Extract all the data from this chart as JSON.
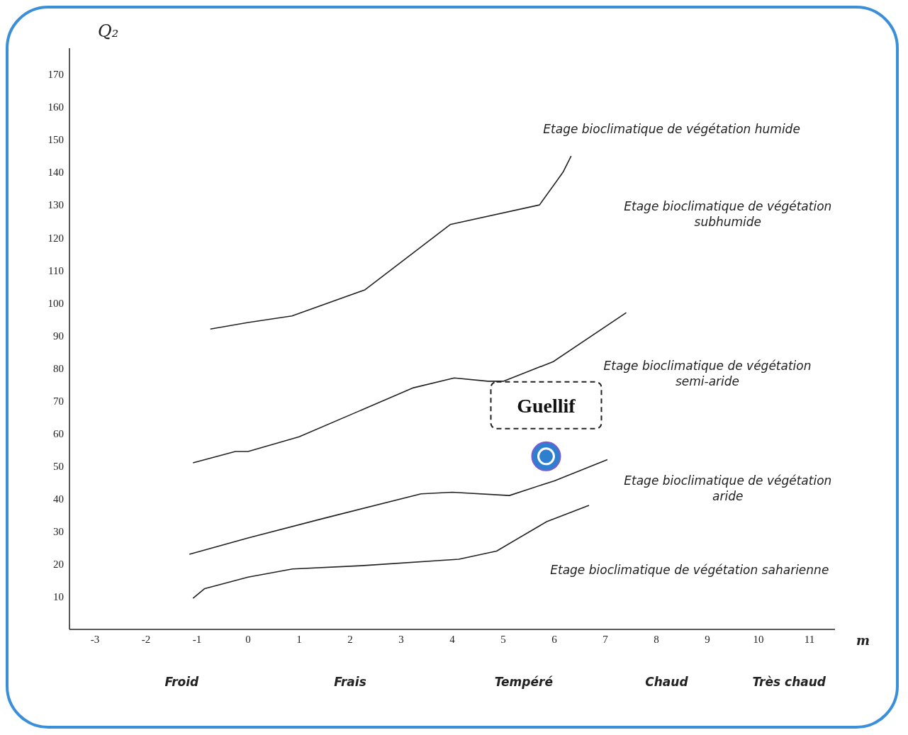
{
  "chart_data": {
    "type": "line",
    "xlabel": "m",
    "ylabel": "Q₂",
    "xlim": [
      -3.5,
      11.5
    ],
    "xticks": [
      -3,
      -2,
      -1,
      0,
      1,
      2,
      3,
      4,
      5,
      6,
      7,
      8,
      9,
      10,
      11
    ],
    "ylim": [
      0,
      178
    ],
    "yticks": [
      10,
      20,
      30,
      40,
      50,
      60,
      70,
      80,
      90,
      100,
      110,
      120,
      130,
      140,
      150,
      160,
      170
    ],
    "grid": false,
    "marker": "none",
    "line_style": "solid",
    "series": [
      {
        "color": "#222222",
        "x": [
          -0.74,
          0,
          0.86,
          2.29,
          3.96,
          5.71,
          6.17,
          6.33
        ],
        "values": [
          92,
          94,
          96,
          104,
          124,
          130,
          140,
          145
        ]
      },
      {
        "color": "#222222",
        "x": [
          -1.08,
          -0.25,
          0,
          1.0,
          3.24,
          4.04,
          4.7,
          5.0,
          5.98,
          7.41
        ],
        "values": [
          51,
          54.5,
          54.5,
          59,
          74,
          77,
          76,
          76,
          82,
          97
        ]
      },
      {
        "color": "#222222",
        "x": [
          -1.15,
          0,
          1.48,
          3.39,
          4.0,
          5.12,
          6.0,
          7.04
        ],
        "values": [
          23,
          28,
          34,
          41.5,
          42,
          41,
          45.5,
          52
        ]
      },
      {
        "color": "#222222",
        "x": [
          -1.08,
          -0.85,
          0,
          0.87,
          2.22,
          4.13,
          4.87,
          5.85,
          6.68
        ],
        "values": [
          9.5,
          12.5,
          16,
          18.5,
          19.5,
          21.5,
          24,
          33,
          38
        ]
      },
      {
        "type": "scatter",
        "name": "Guellif",
        "color": "#2f7fd0",
        "marker": "circle",
        "x": [
          5.84
        ],
        "values": [
          53
        ]
      }
    ],
    "annotations": [
      "Etage bioclimatique de végétation humide",
      "Etage bioclimatique de végétation subhumide",
      "Etage bioclimatique de végétation semi-aride",
      "Etage bioclimatique de végétation aride",
      "Etage bioclimatique de végétation saharienne",
      "Froid",
      "Frais",
      "Tempéré",
      "Chaud",
      "Très chaud"
    ]
  }
}
